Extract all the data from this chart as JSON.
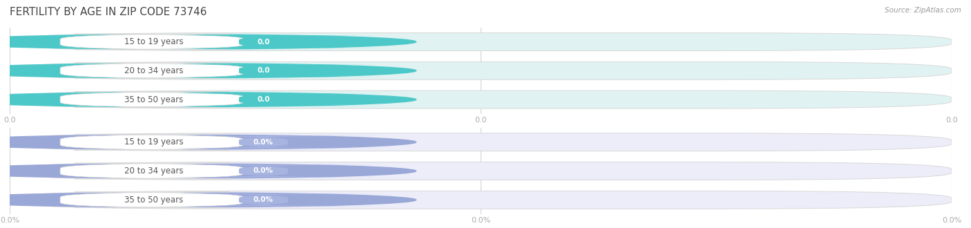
{
  "title": "FERTILITY BY AGE IN ZIP CODE 73746",
  "source": "Source: ZipAtlas.com",
  "categories": [
    "15 to 19 years",
    "20 to 34 years",
    "35 to 50 years"
  ],
  "group1_values": [
    0.0,
    0.0,
    0.0
  ],
  "group2_values": [
    0.0,
    0.0,
    0.0
  ],
  "group1_label_suffix": "",
  "group2_label_suffix": "%",
  "group1_bar_bg": "#e0f2f2",
  "group1_circle_color": "#4dc8c8",
  "group1_label_bg": "#ffffff",
  "group1_badge_color": "#4dc8c8",
  "group1_text_color": "#ffffff",
  "group1_cat_text_color": "#555555",
  "group2_bar_bg": "#ecedf8",
  "group2_circle_color": "#9aa8d8",
  "group2_label_bg": "#ffffff",
  "group2_badge_color": "#a8b4e0",
  "group2_text_color": "#ffffff",
  "group2_cat_text_color": "#555555",
  "background_color": "#ffffff",
  "title_fontsize": 11,
  "label_fontsize": 8.5,
  "value_fontsize": 7.5,
  "tick_fontsize": 8,
  "grid_color": "#cccccc",
  "bar_edge_color": "#d8d8d8",
  "xtick_labels_top": [
    "0.0",
    "0.0",
    "0.0"
  ],
  "xtick_labels_bottom": [
    "0.0%",
    "0.0%",
    "0.0%"
  ]
}
